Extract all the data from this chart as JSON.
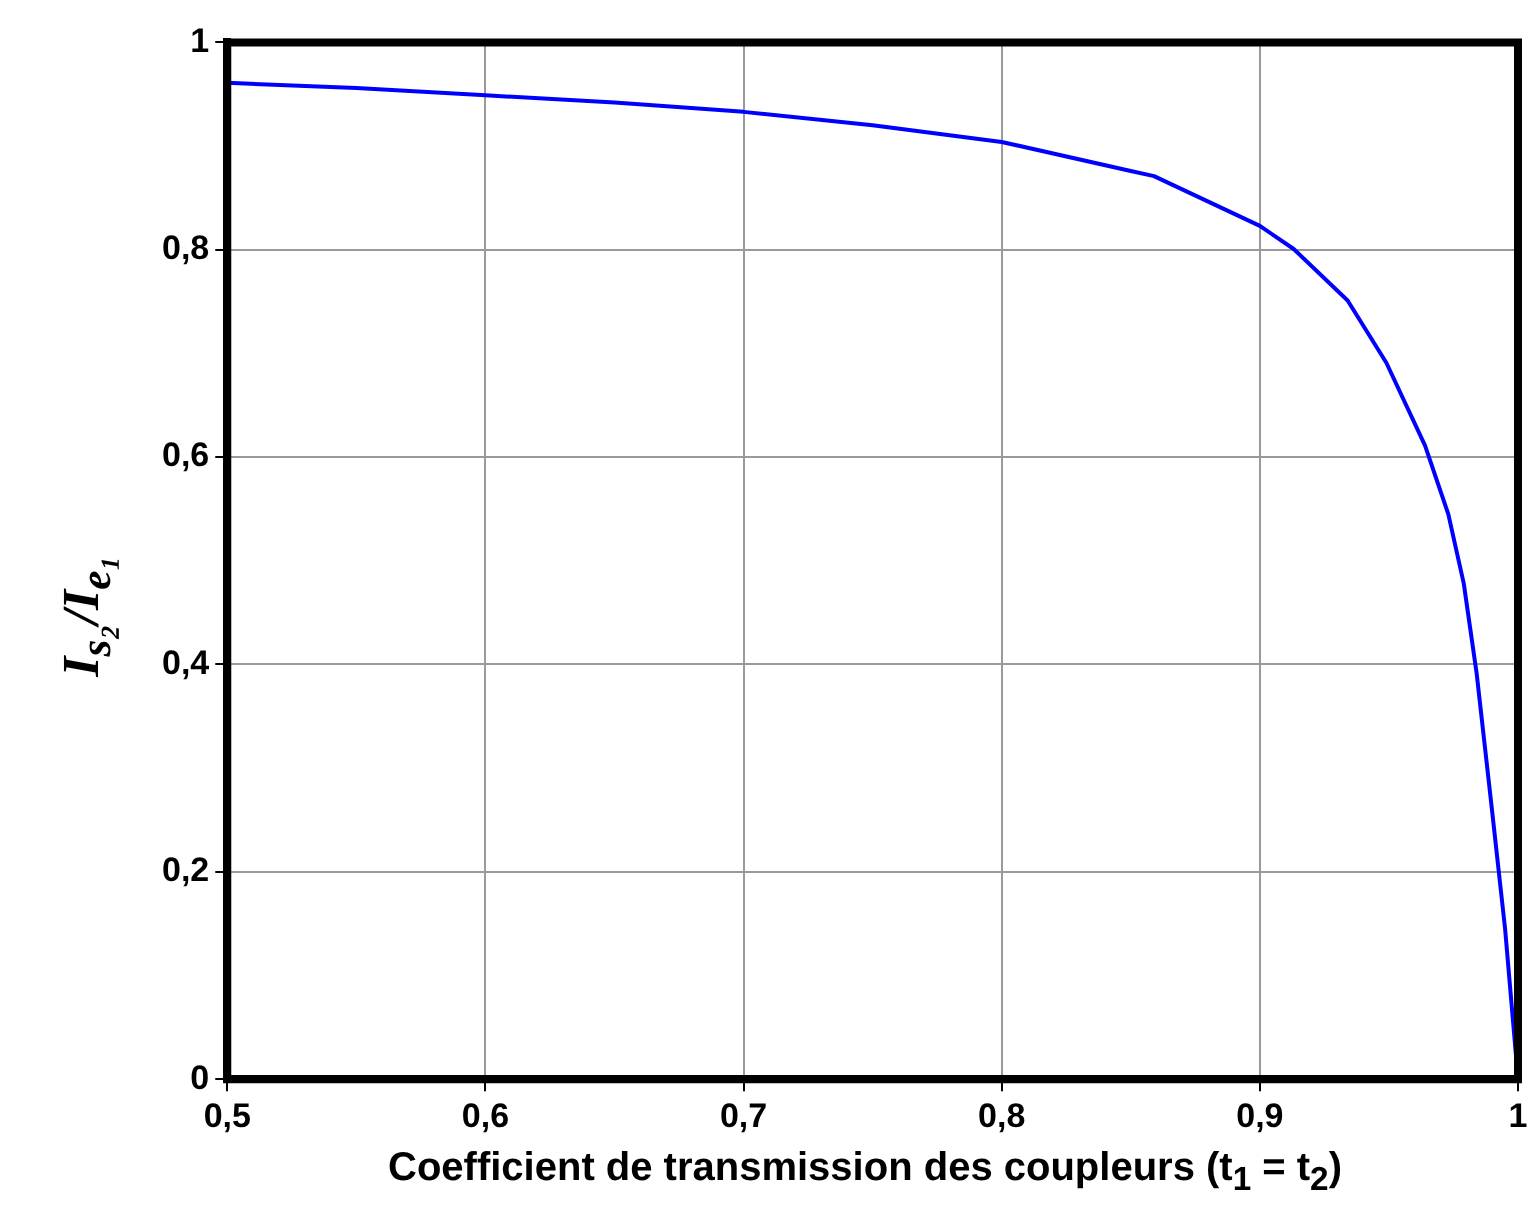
{
  "chart_data": {
    "type": "line",
    "xlabel": "Coefficient de transmission des coupleurs (t$_{1}$ = t$_{2}$)",
    "ylabel": "I$_{s₂}$/I$_{e₁}$",
    "series": [
      {
        "color": "#0000ff",
        "x": [
          0.5,
          0.55,
          0.6,
          0.65,
          0.7,
          0.75,
          0.8,
          0.85,
          0.859,
          0.9,
          0.913,
          0.934,
          0.949,
          0.964,
          0.973,
          0.979,
          0.984,
          0.99,
          0.995,
          1.0
        ],
        "values": [
          0.961,
          0.956,
          0.949,
          0.942,
          0.933,
          0.92,
          0.904,
          0.876,
          0.871,
          0.823,
          0.801,
          0.751,
          0.691,
          0.611,
          0.545,
          0.478,
          0.391,
          0.258,
          0.145,
          0
        ]
      }
    ],
    "xlim": [
      0.5,
      1
    ],
    "xticks": [
      {
        "value": 0.5,
        "label": "0,5"
      },
      {
        "value": 0.6,
        "label": "0,6"
      },
      {
        "value": 0.7,
        "label": "0,7"
      },
      {
        "value": 0.8,
        "label": "0,8"
      },
      {
        "value": 0.9,
        "label": "0,9"
      },
      1
    ],
    "ylim": [
      0,
      1
    ],
    "yticks": [
      0,
      {
        "value": 0.2,
        "label": "0,2"
      },
      {
        "value": 0.4,
        "label": "0,4"
      },
      {
        "value": 0.6,
        "label": "0,6"
      },
      {
        "value": 0.8,
        "label": "0,8"
      },
      1
    ],
    "grid": true,
    "legend": false,
    "marker": "none",
    "line_style": "solid"
  }
}
